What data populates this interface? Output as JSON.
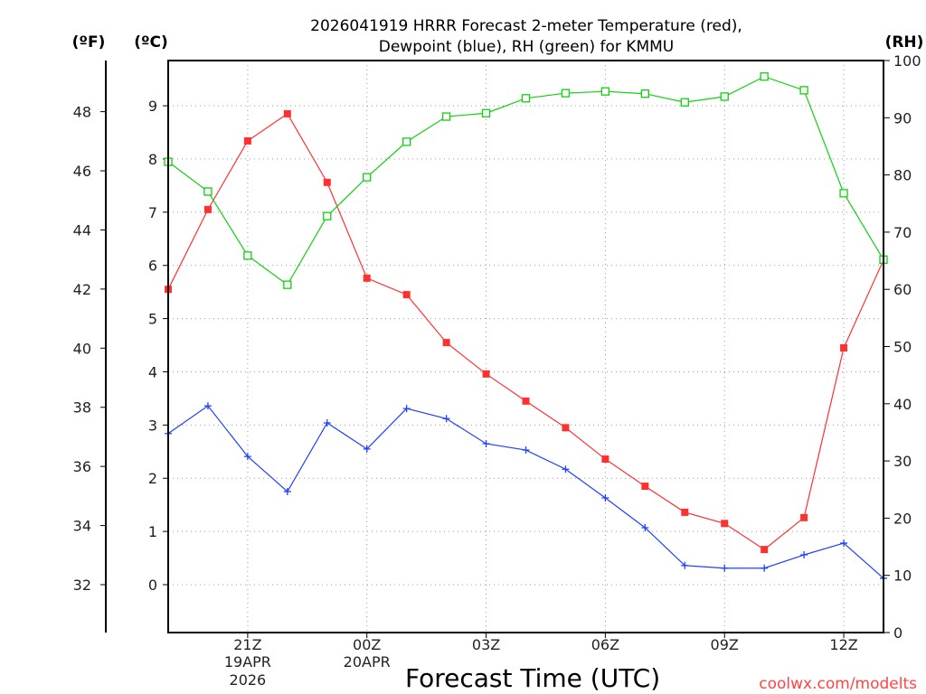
{
  "chart_data": {
    "type": "line",
    "title_line1": "2026041919 HRRR Forecast 2-meter Temperature (red),",
    "title_line2": "Dewpoint (blue), RH (green) for KMMU",
    "xlabel": "Forecast Time (UTC)",
    "unit_f": "(ºF)",
    "unit_c": "(ºC)",
    "unit_rh": "(RH)",
    "watermark": "coolwx.com/modelts",
    "hours": [
      "19Z",
      "20Z",
      "21Z",
      "22Z",
      "23Z",
      "00Z",
      "01Z",
      "02Z",
      "03Z",
      "04Z",
      "05Z",
      "06Z",
      "07Z",
      "08Z",
      "09Z",
      "10Z",
      "11Z",
      "12Z",
      "13Z"
    ],
    "x_ticks": [
      {
        "index": 2,
        "label": "21Z",
        "sub1": "19APR",
        "sub2": "2026"
      },
      {
        "index": 5,
        "label": "00Z",
        "sub1": "20APR",
        "sub2": ""
      },
      {
        "index": 8,
        "label": "03Z",
        "sub1": "",
        "sub2": ""
      },
      {
        "index": 11,
        "label": "06Z",
        "sub1": "",
        "sub2": ""
      },
      {
        "index": 14,
        "label": "09Z",
        "sub1": "",
        "sub2": ""
      },
      {
        "index": 17,
        "label": "12Z",
        "sub1": "",
        "sub2": ""
      }
    ],
    "c_ticks": [
      "0",
      "1",
      "2",
      "3",
      "4",
      "5",
      "6",
      "7",
      "8",
      "9"
    ],
    "f_ticks": [
      "32",
      "34",
      "36",
      "38",
      "40",
      "42",
      "44",
      "46",
      "48"
    ],
    "rh_ticks": [
      "0",
      "10",
      "20",
      "30",
      "40",
      "50",
      "60",
      "70",
      "80",
      "90",
      "100"
    ],
    "c_range": [
      -0.9,
      9.85
    ],
    "rh_range": [
      0,
      100
    ],
    "series": [
      {
        "name": "Temperature",
        "unit": "C",
        "color": "#ff3030",
        "values": [
          5.55,
          7.05,
          8.34,
          8.85,
          7.56,
          5.76,
          5.45,
          4.55,
          3.96,
          3.45,
          2.95,
          2.36,
          1.85,
          1.36,
          1.15,
          0.66,
          1.26,
          4.45,
          6.1
        ]
      },
      {
        "name": "Dewpoint",
        "unit": "C",
        "color": "#2040ff",
        "values": [
          2.84,
          3.36,
          2.41,
          1.75,
          3.04,
          2.55,
          3.31,
          3.12,
          2.65,
          2.53,
          2.17,
          1.63,
          1.07,
          0.36,
          0.31,
          0.31,
          0.56,
          0.78,
          0.12
        ]
      },
      {
        "name": "RH",
        "unit": "%",
        "color": "#10d010",
        "values": [
          82.3,
          77.1,
          65.9,
          60.8,
          72.8,
          79.6,
          85.8,
          90.2,
          90.8,
          93.4,
          94.3,
          94.6,
          94.2,
          92.7,
          93.7,
          97.2,
          94.8,
          76.8,
          65.2
        ]
      }
    ]
  }
}
